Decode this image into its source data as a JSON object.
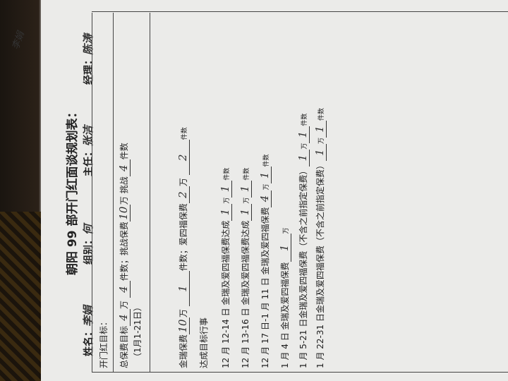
{
  "corner_signature": "李娟",
  "title": "朝阳 99 部开门红面谈规划表：",
  "header": {
    "name_label": "姓名：",
    "name": "李娟",
    "group_label": "组别：",
    "group": "何",
    "director_label": "主任：",
    "director": "张洁",
    "manager_label": "经理：",
    "manager": "陈涛"
  },
  "section_title": "开门红目标：",
  "total": {
    "label": "总保费目标",
    "value": "4",
    "unit": "万",
    "count": "4",
    "count_label": "件数；挑战保费",
    "challenge": "10",
    "challenge_unit": "万",
    "challenge_label": "挑战",
    "challenge_count": "4",
    "count_suffix": "件数",
    "period": "（1月1-21日）"
  },
  "jinrui": {
    "label": "金瑞保费",
    "value": "10",
    "unit": "万",
    "count": "1",
    "count_label": "件数；爱四福保费",
    "asf_value": "2",
    "asf_unit": "万",
    "asf_count": "2",
    "count_suffix": "件数"
  },
  "plan_title": "达成目标行事",
  "rows": [
    {
      "text": "12 月 12-14 日  金瑞及爱四福保费达成",
      "v1": "1",
      "u1": "万",
      "v2": "1",
      "u2": "件数"
    },
    {
      "text": "12 月 13-16 日  金瑞及爱四福保费达成",
      "v1": "1",
      "u1": "万",
      "v2": "1",
      "u2": "件数"
    },
    {
      "text": "12 月 17 日-1 月 11 日  金瑞及爱四福保费",
      "v1": "4",
      "u1": "万",
      "v2": "1",
      "u2": "件数"
    },
    {
      "text": "1 月 4 日  金瑞及爱四福保费",
      "v1": "1",
      "u1": "万",
      "v2": "",
      "u2": ""
    },
    {
      "text": "1 月 5-21 日金瑞及爱四福保费（不含之前指定保费）",
      "v1": "1",
      "u1": "万",
      "v2": "1",
      "u2": "件数"
    },
    {
      "text": "1 月 22-31 日金瑞及爱四福保费（不含之前指定保费）",
      "v1": "1",
      "u1": "万",
      "v2": "1",
      "u2": "件数"
    }
  ]
}
